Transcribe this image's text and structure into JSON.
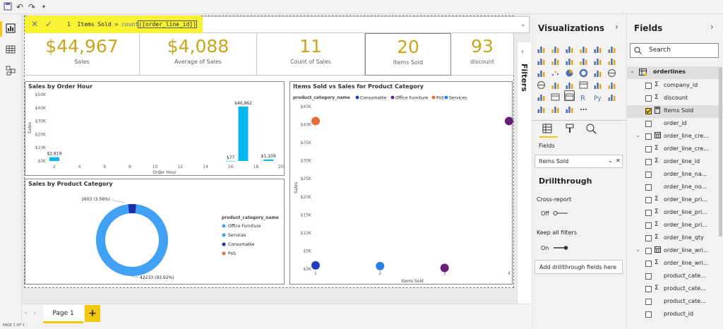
{
  "formula": {
    "line": "1",
    "text_plain": "Items Sold = ",
    "fn": "count",
    "text_arg": "([order_line_id])"
  },
  "cards": [
    {
      "value": "$44,967",
      "label": "Sales"
    },
    {
      "value": "$4,088",
      "label": "Average of Sales"
    },
    {
      "value": "11",
      "label": "Count of Sales"
    },
    {
      "value": "20",
      "label": "Items Sold"
    },
    {
      "value": "93",
      "label": "discount"
    }
  ],
  "filters_label": "Filters",
  "page_tab": "Page 1",
  "add_page": "+",
  "status": "PAGE 1 OF 1",
  "viz_pane": {
    "title": "Visualizations",
    "fields_label": "Fields",
    "well_item": "Items Sold",
    "drill_title": "Drillthrough",
    "cross_report": "Cross-report",
    "cross_state": "Off",
    "keep_filters": "Keep all filters",
    "keep_state": "On",
    "add_drill": "Add drillthrough fields here"
  },
  "fields_pane": {
    "title": "Fields",
    "search_placeholder": "Search",
    "table": "orderlines",
    "fields": [
      {
        "name": "company_id",
        "sigma": true,
        "checked": false,
        "exp": false,
        "tbl": false
      },
      {
        "name": "discount",
        "sigma": true,
        "checked": false,
        "exp": false,
        "tbl": false
      },
      {
        "name": "Items Sold",
        "sigma": false,
        "checked": true,
        "exp": false,
        "tbl": false,
        "calc": true
      },
      {
        "name": "order_id",
        "sigma": false,
        "checked": false,
        "exp": false,
        "tbl": false
      },
      {
        "name": "order_line_cre...",
        "sigma": false,
        "checked": false,
        "exp": true,
        "tbl": true
      },
      {
        "name": "order_line_cre...",
        "sigma": true,
        "checked": false,
        "exp": false,
        "tbl": false
      },
      {
        "name": "order_line_id",
        "sigma": true,
        "checked": false,
        "exp": false,
        "tbl": false
      },
      {
        "name": "order_line_na...",
        "sigma": false,
        "checked": false,
        "exp": false,
        "tbl": false
      },
      {
        "name": "order_line_no...",
        "sigma": false,
        "checked": false,
        "exp": false,
        "tbl": false
      },
      {
        "name": "order_line_pri...",
        "sigma": true,
        "checked": false,
        "exp": false,
        "tbl": false
      },
      {
        "name": "order_line_pri...",
        "sigma": true,
        "checked": false,
        "exp": false,
        "tbl": false
      },
      {
        "name": "order_line_pri...",
        "sigma": true,
        "checked": false,
        "exp": false,
        "tbl": false
      },
      {
        "name": "order_line_qty",
        "sigma": true,
        "checked": false,
        "exp": false,
        "tbl": false
      },
      {
        "name": "order_line_wri...",
        "sigma": false,
        "checked": false,
        "exp": true,
        "tbl": true
      },
      {
        "name": "order_line_wri...",
        "sigma": true,
        "checked": false,
        "exp": false,
        "tbl": false
      },
      {
        "name": "product_cate...",
        "sigma": false,
        "checked": false,
        "exp": false,
        "tbl": false
      },
      {
        "name": "product_cate...",
        "sigma": true,
        "checked": false,
        "exp": false,
        "tbl": false
      },
      {
        "name": "product_cate...",
        "sigma": false,
        "checked": false,
        "exp": false,
        "tbl": false
      },
      {
        "name": "product_id",
        "sigma": false,
        "checked": false,
        "exp": false,
        "tbl": false
      }
    ]
  },
  "colors": {
    "accent": "#f2c811",
    "card_value": "#c8a51b",
    "bar": "#00b7f1",
    "office_furniture": "#41a2f5",
    "services": "#41a2f5",
    "consumable": "#1a2fa8",
    "pos": "#e66c37",
    "scatter_consumable": "#1e3fc1",
    "scatter_office": "#6b1b7c",
    "scatter_services": "#2b7fe0"
  },
  "chart_data": [
    {
      "type": "bar",
      "title": "Sales by Order Hour",
      "xlabel": "Order Hour",
      "ylabel": "Sales",
      "x": [
        2,
        16,
        17,
        19
      ],
      "values": [
        2819,
        77,
        40962,
        1109
      ],
      "data_labels": [
        "$2,819",
        "$77",
        "$40,962",
        "$1,109"
      ],
      "xticks": [
        "2",
        "4",
        "6",
        "8",
        "10",
        "12",
        "14",
        "16",
        "18",
        "20"
      ],
      "yticks": [
        "$0K",
        "$10K",
        "$20K",
        "$30K",
        "$40K",
        "$50K"
      ],
      "xlim": [
        1.5,
        20
      ],
      "ylim": [
        0,
        50000
      ]
    },
    {
      "type": "pie",
      "title": "Sales by Product Category",
      "legend_title": "product_category_name",
      "series": [
        {
          "name": "Office Furniture",
          "value": 0
        },
        {
          "name": "Services",
          "value": 42233,
          "label": "42233 (93.92%)"
        },
        {
          "name": "Consumable",
          "value": 1603,
          "label": "1603 (3.56%)"
        },
        {
          "name": "PoS",
          "value": 0
        }
      ]
    },
    {
      "type": "scatter",
      "title": "Items Sold vs Sales for Product Category",
      "legend_title": "product_category_name",
      "legend": [
        "Consumable",
        "Office Furniture",
        "PoS",
        "Services"
      ],
      "xlabel": "Items Sold",
      "ylabel": "Sales",
      "xticks": [
        "1",
        "2",
        "3",
        "4"
      ],
      "yticks": [
        "$0K",
        "$5K",
        "$10K",
        "$15K",
        "$20K",
        "$25K",
        "$30K",
        "$35K",
        "$40K",
        "$45K"
      ],
      "xlim": [
        1,
        4
      ],
      "ylim": [
        0,
        45000
      ],
      "points": [
        {
          "series": "PoS",
          "x": 1,
          "y": 41000
        },
        {
          "series": "Consumable",
          "x": 1,
          "y": 1000
        },
        {
          "series": "Services",
          "x": 2,
          "y": 800
        },
        {
          "series": "Office Furniture",
          "x": 3,
          "y": 300
        },
        {
          "series": "Office Furniture",
          "x": 4,
          "y": 41000
        }
      ]
    }
  ]
}
